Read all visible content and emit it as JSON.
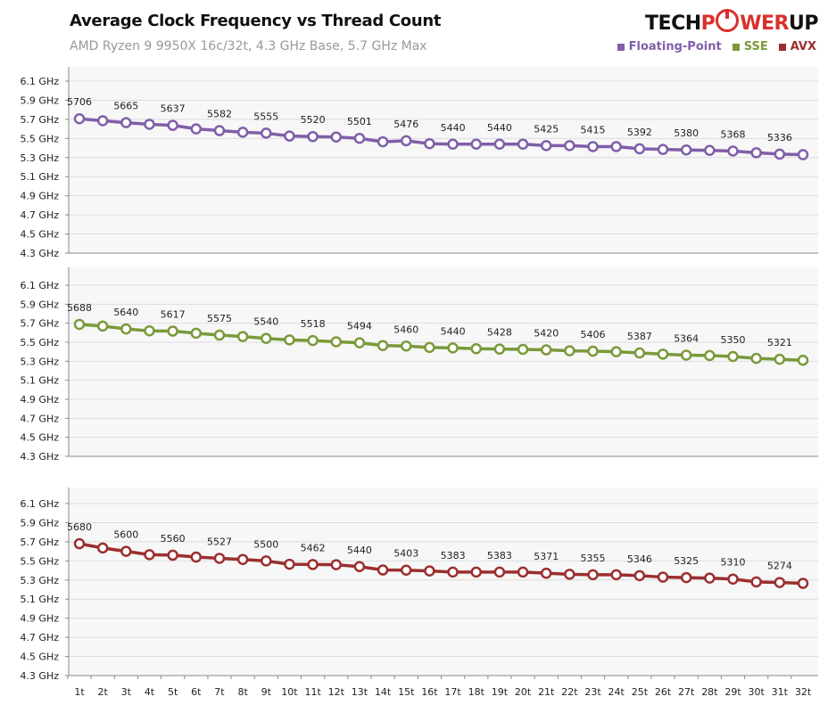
{
  "header": {
    "title": "Average Clock Frequency vs Thread Count",
    "subtitle": "AMD Ryzen 9 9950X 16c/32t, 4.3 GHz Base, 5.7 GHz Max",
    "logo": "TECHPOWERUP"
  },
  "chart_data": {
    "type": "line",
    "title": "Average Clock Frequency vs Thread Count",
    "subtitle": "AMD Ryzen 9 9950X 16c/32t, 4.3 GHz Base, 5.7 GHz Max",
    "legend_placement": "top-right",
    "grid": true,
    "categories": [
      "1t",
      "2t",
      "3t",
      "4t",
      "5t",
      "6t",
      "7t",
      "8t",
      "9t",
      "10t",
      "11t",
      "12t",
      "13t",
      "14t",
      "15t",
      "16t",
      "17t",
      "18t",
      "19t",
      "20t",
      "21t",
      "22t",
      "23t",
      "24t",
      "25t",
      "26t",
      "27t",
      "28t",
      "29t",
      "30t",
      "31t",
      "32t"
    ],
    "y_ticks": [
      "6.1 GHz",
      "5.9 GHz",
      "5.7 GHz",
      "5.5 GHz",
      "5.3 GHz",
      "5.1 GHz",
      "4.9 GHz",
      "4.7 GHz",
      "4.5 GHz",
      "4.3 GHz"
    ],
    "ylim_mhz": [
      4300,
      6100
    ],
    "unit": "MHz",
    "data_labels_on": "odd thread counts",
    "series": [
      {
        "name": "Floating-Point",
        "color": "#7f5fa8",
        "values": [
          5706,
          5685,
          5665,
          5648,
          5637,
          5600,
          5582,
          5565,
          5555,
          5525,
          5520,
          5515,
          5501,
          5465,
          5476,
          5445,
          5440,
          5440,
          5440,
          5440,
          5425,
          5425,
          5415,
          5415,
          5392,
          5385,
          5380,
          5375,
          5368,
          5350,
          5336,
          5330
        ]
      },
      {
        "name": "SSE",
        "color": "#7a9a3a",
        "values": [
          5688,
          5670,
          5640,
          5620,
          5617,
          5595,
          5575,
          5560,
          5540,
          5525,
          5518,
          5505,
          5494,
          5465,
          5460,
          5445,
          5440,
          5432,
          5428,
          5425,
          5420,
          5410,
          5406,
          5400,
          5387,
          5375,
          5364,
          5360,
          5350,
          5330,
          5321,
          5310
        ]
      },
      {
        "name": "AVX",
        "color": "#9b2f2f",
        "values": [
          5680,
          5635,
          5600,
          5565,
          5560,
          5540,
          5527,
          5515,
          5500,
          5465,
          5462,
          5460,
          5440,
          5405,
          5403,
          5395,
          5383,
          5383,
          5383,
          5383,
          5371,
          5360,
          5355,
          5355,
          5346,
          5330,
          5325,
          5320,
          5310,
          5280,
          5274,
          5265
        ]
      }
    ]
  }
}
